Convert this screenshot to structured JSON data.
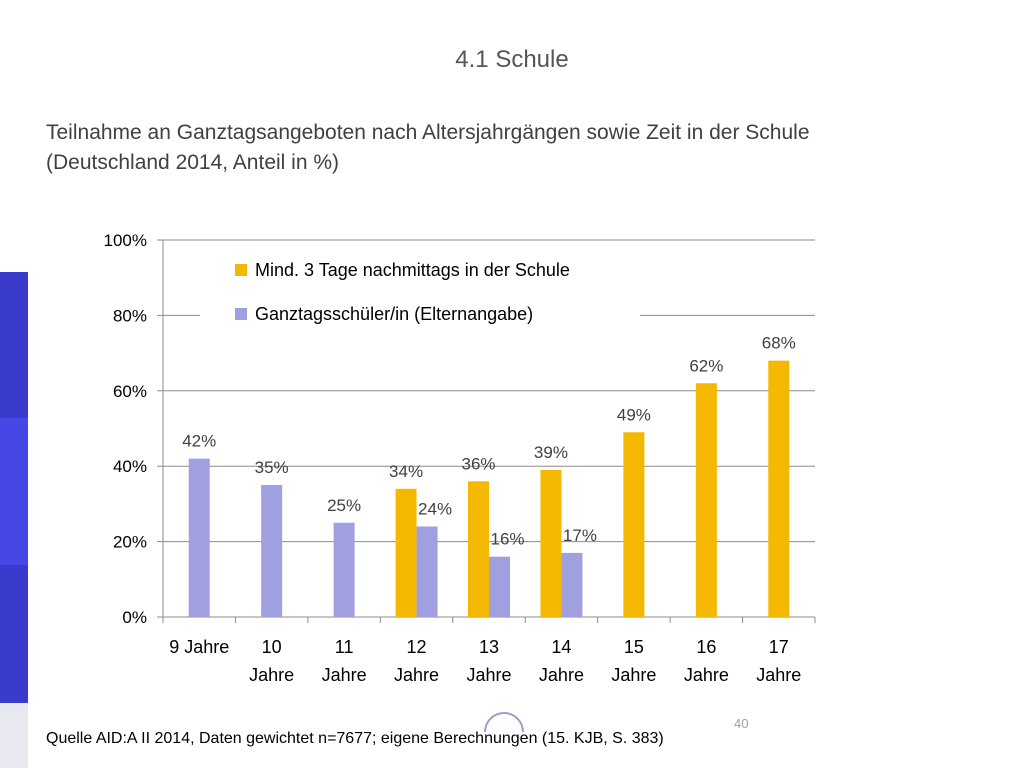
{
  "header": {
    "section_title": "4.1 Schule",
    "subtitle_line1": "Teilnahme an Ganztagsangeboten nach Altersjahrgängen  sowie Zeit in der Schule",
    "subtitle_line2": "(Deutschland 2014, Anteil in %)"
  },
  "footer": {
    "source": "Quelle AID:A II 2014,  Daten gewichtet n=7677; eigene Berechnungen (15. KJB, S. 383)",
    "page_number": "40"
  },
  "chart_data": {
    "type": "bar",
    "categories": [
      [
        "9 Jahre"
      ],
      [
        "10",
        "Jahre"
      ],
      [
        "11",
        "Jahre"
      ],
      [
        "12",
        "Jahre"
      ],
      [
        "13",
        "Jahre"
      ],
      [
        "14",
        "Jahre"
      ],
      [
        "15",
        "Jahre"
      ],
      [
        "16",
        "Jahre"
      ],
      [
        "17",
        "Jahre"
      ]
    ],
    "series": [
      {
        "name": "Mind. 3 Tage nachmittags in der Schule",
        "color": "#f5b800",
        "values": [
          null,
          null,
          null,
          34,
          36,
          39,
          49,
          62,
          68
        ],
        "labels": [
          "",
          "",
          "",
          "34%",
          "36%",
          "39%",
          "49%",
          "62%",
          "68%"
        ]
      },
      {
        "name": "Ganztagsschüler/in (Elternangabe)",
        "color": "#a09fe0",
        "values": [
          42,
          35,
          25,
          24,
          16,
          17,
          null,
          null,
          null
        ],
        "labels": [
          "42%",
          "35%",
          "25%",
          "24%",
          "16%",
          "17%",
          "",
          "",
          ""
        ]
      }
    ],
    "yticks": [
      "0%",
      "20%",
      "40%",
      "60%",
      "80%",
      "100%"
    ],
    "ylim": [
      0,
      100
    ],
    "grid": true,
    "legend": "top-left inside plot"
  }
}
